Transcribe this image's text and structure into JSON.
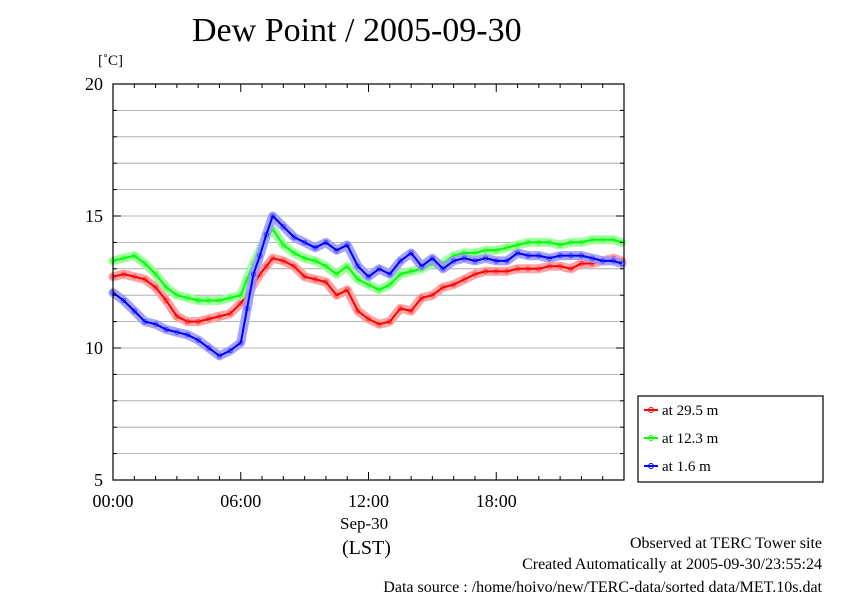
{
  "title": "Dew Point / 2005-09-30",
  "unit": "[˚C]",
  "date_label": "Sep-30",
  "tz_label": "(LST)",
  "footer": {
    "observed": "Observed at TERC Tower site",
    "created": "Created Automatically at 2005-09-30/23:55:24",
    "source": "Data source : /home/hoivo/new/TERC-data/sorted  data/MET.10s.dat"
  },
  "chart_data": {
    "type": "line",
    "title": "Dew Point / 2005-09-30",
    "ylabel": "[˚C]",
    "xlabel": "Sep-30 (LST)",
    "xlim": [
      0,
      24
    ],
    "ylim": [
      5,
      20
    ],
    "x_ticks": [
      {
        "v": 0,
        "label": "00:00"
      },
      {
        "v": 6,
        "label": "06:00"
      },
      {
        "v": 12,
        "label": "12:00"
      },
      {
        "v": 18,
        "label": "18:00"
      }
    ],
    "y_ticks": [
      {
        "v": 5,
        "label": "5"
      },
      {
        "v": 10,
        "label": "10"
      },
      {
        "v": 15,
        "label": "15"
      },
      {
        "v": 20,
        "label": "20"
      }
    ],
    "grid": true,
    "legend_position": "right",
    "series": [
      {
        "name": "at 29.5 m",
        "color": "#ff0000",
        "x": [
          0,
          0.5,
          1,
          1.5,
          2,
          2.5,
          3,
          3.5,
          4,
          4.5,
          5,
          5.5,
          6,
          6.3,
          6.6,
          6.9,
          7.2,
          7.5,
          8,
          8.5,
          9,
          9.5,
          10,
          10.5,
          11,
          11.5,
          12,
          12.5,
          13,
          13.5,
          14,
          14.5,
          15,
          15.5,
          16,
          16.5,
          17,
          17.5,
          18,
          18.5,
          19,
          19.5,
          20,
          20.5,
          21,
          21.5,
          22,
          22.5,
          23,
          23.5,
          23.9
        ],
        "y": [
          12.7,
          12.8,
          12.7,
          12.6,
          12.3,
          11.8,
          11.2,
          11.0,
          11.0,
          11.1,
          11.2,
          11.3,
          11.7,
          12.0,
          12.4,
          12.8,
          13.1,
          13.4,
          13.3,
          13.1,
          12.7,
          12.6,
          12.5,
          12.0,
          12.2,
          11.4,
          11.1,
          10.9,
          11.0,
          11.5,
          11.4,
          11.9,
          12.0,
          12.3,
          12.4,
          12.6,
          12.8,
          12.9,
          12.9,
          12.9,
          13.0,
          13.0,
          13.0,
          13.1,
          13.1,
          13.0,
          13.2,
          13.2,
          13.3,
          13.4,
          13.3
        ]
      },
      {
        "name": "at 12.3 m",
        "color": "#00ff00",
        "x": [
          0,
          0.5,
          1,
          1.5,
          2,
          2.5,
          3,
          3.5,
          4,
          4.5,
          5,
          5.5,
          6,
          6.3,
          6.6,
          6.9,
          7.2,
          7.5,
          8,
          8.5,
          9,
          9.5,
          10,
          10.5,
          11,
          11.5,
          12,
          12.5,
          13,
          13.5,
          14,
          14.5,
          15,
          15.5,
          16,
          16.5,
          17,
          17.5,
          18,
          18.5,
          19,
          19.5,
          20,
          20.5,
          21,
          21.5,
          22,
          22.5,
          23,
          23.5,
          23.9
        ],
        "y": [
          13.3,
          13.4,
          13.5,
          13.2,
          12.8,
          12.3,
          12.0,
          11.9,
          11.8,
          11.8,
          11.8,
          11.9,
          12.0,
          12.6,
          13.2,
          13.7,
          14.2,
          14.5,
          13.9,
          13.6,
          13.4,
          13.3,
          13.1,
          12.8,
          13.1,
          12.6,
          12.4,
          12.2,
          12.4,
          12.8,
          12.9,
          13.0,
          13.2,
          13.2,
          13.5,
          13.6,
          13.6,
          13.7,
          13.7,
          13.8,
          13.9,
          14.0,
          14.0,
          14.0,
          13.9,
          14.0,
          14.0,
          14.1,
          14.1,
          14.1,
          14.0
        ]
      },
      {
        "name": "at 1.6 m",
        "color": "#0000ff",
        "x": [
          0,
          0.5,
          1,
          1.5,
          2,
          2.5,
          3,
          3.5,
          4,
          4.5,
          5,
          5.5,
          6,
          6.3,
          6.6,
          6.9,
          7.2,
          7.5,
          8,
          8.5,
          9,
          9.5,
          10,
          10.5,
          11,
          11.5,
          12,
          12.5,
          13,
          13.5,
          14,
          14.5,
          15,
          15.5,
          16,
          16.5,
          17,
          17.5,
          18,
          18.5,
          19,
          19.5,
          20,
          20.5,
          21,
          21.5,
          22,
          22.5,
          23,
          23.5,
          23.9
        ],
        "y": [
          12.1,
          11.8,
          11.4,
          11.0,
          10.9,
          10.7,
          10.6,
          10.5,
          10.3,
          10.0,
          9.7,
          9.9,
          10.2,
          11.5,
          12.8,
          13.5,
          14.3,
          15.0,
          14.6,
          14.2,
          14.0,
          13.8,
          14.0,
          13.7,
          13.9,
          13.1,
          12.7,
          13.0,
          12.8,
          13.3,
          13.6,
          13.1,
          13.4,
          13.0,
          13.3,
          13.4,
          13.3,
          13.4,
          13.3,
          13.3,
          13.6,
          13.5,
          13.5,
          13.4,
          13.5,
          13.5,
          13.5,
          13.4,
          13.3,
          13.3,
          13.2
        ]
      }
    ]
  }
}
